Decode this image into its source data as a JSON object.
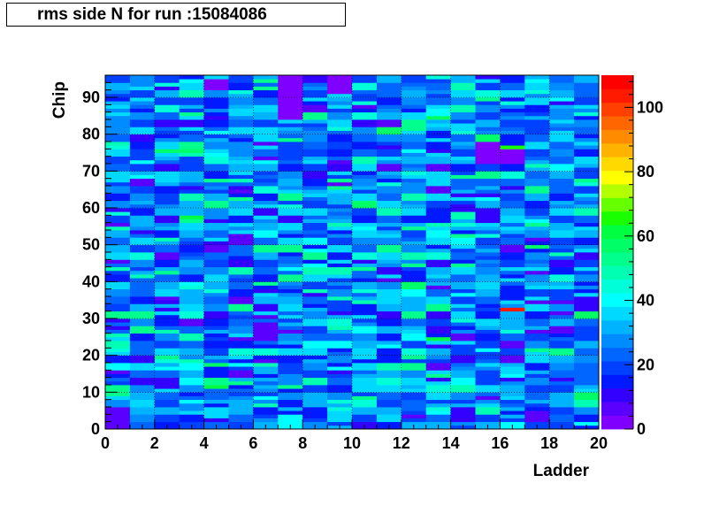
{
  "chart_data": {
    "type": "heatmap",
    "title": "rms side N for run :15084086",
    "xlabel": "Ladder",
    "ylabel": "Chip",
    "xlim": [
      0,
      20
    ],
    "ylim": [
      0,
      96
    ],
    "zlim": [
      0,
      110
    ],
    "x_ticks": [
      "0",
      "2",
      "4",
      "6",
      "8",
      "10",
      "12",
      "14",
      "16",
      "18",
      "20"
    ],
    "y_ticks": [
      "0",
      "10",
      "20",
      "30",
      "40",
      "50",
      "60",
      "70",
      "80",
      "90"
    ],
    "z_ticks": [
      "0",
      "20",
      "40",
      "60",
      "80",
      "100"
    ],
    "n_ladders": 20,
    "n_chips": 96,
    "grid": true,
    "palette": [
      "#8000ff",
      "#5a00ff",
      "#3300ff",
      "#0019ff",
      "#0040ff",
      "#0066ff",
      "#008cff",
      "#00b3ff",
      "#00d9ff",
      "#00ffff",
      "#00ffd9",
      "#00ffb3",
      "#00ff8c",
      "#00ff66",
      "#00ff40",
      "#19ff00",
      "#66ff00",
      "#b3ff00",
      "#ffff00",
      "#ffd900",
      "#ffb300",
      "#ff8c00",
      "#ff6600",
      "#ff4000",
      "#ff1a00",
      "#ff0000"
    ],
    "highlights": [
      {
        "ladder": 16,
        "chip_from": 32,
        "chip_to": 33,
        "value": 104
      },
      {
        "ladder": 16,
        "chip_from": 76,
        "chip_to": 77,
        "value": 66
      },
      {
        "ladder": 13,
        "chip_from": 24,
        "chip_to": 25,
        "value": 62
      },
      {
        "ladder": 3,
        "chip_from": 57,
        "chip_to": 58,
        "value": 62
      },
      {
        "ladder": 4,
        "chip_from": 11,
        "chip_to": 12,
        "value": 62
      },
      {
        "ladder": 7,
        "chip_from": 84,
        "chip_to": 96,
        "value": 4
      },
      {
        "ladder": 9,
        "chip_from": 91,
        "chip_to": 96,
        "value": 4
      },
      {
        "ladder": 15,
        "chip_from": 72,
        "chip_to": 78,
        "value": 4
      },
      {
        "ladder": 16,
        "chip_from": 72,
        "chip_to": 76,
        "value": 4
      },
      {
        "ladder": 4,
        "chip_from": 92,
        "chip_to": 95,
        "value": 4
      },
      {
        "ladder": 0,
        "chip_from": 0,
        "chip_to": 6,
        "value": 8
      },
      {
        "ladder": 17,
        "chip_from": 2,
        "chip_to": 5,
        "value": 6
      },
      {
        "ladder": 5,
        "chip_from": 50,
        "chip_to": 53,
        "value": 8
      },
      {
        "ladder": 6,
        "chip_from": 24,
        "chip_to": 29,
        "value": 8
      },
      {
        "ladder": 18,
        "chip_from": 44,
        "chip_to": 46,
        "value": 10
      },
      {
        "ladder": 2,
        "chip_from": 11,
        "chip_to": 14,
        "value": 10
      }
    ]
  }
}
